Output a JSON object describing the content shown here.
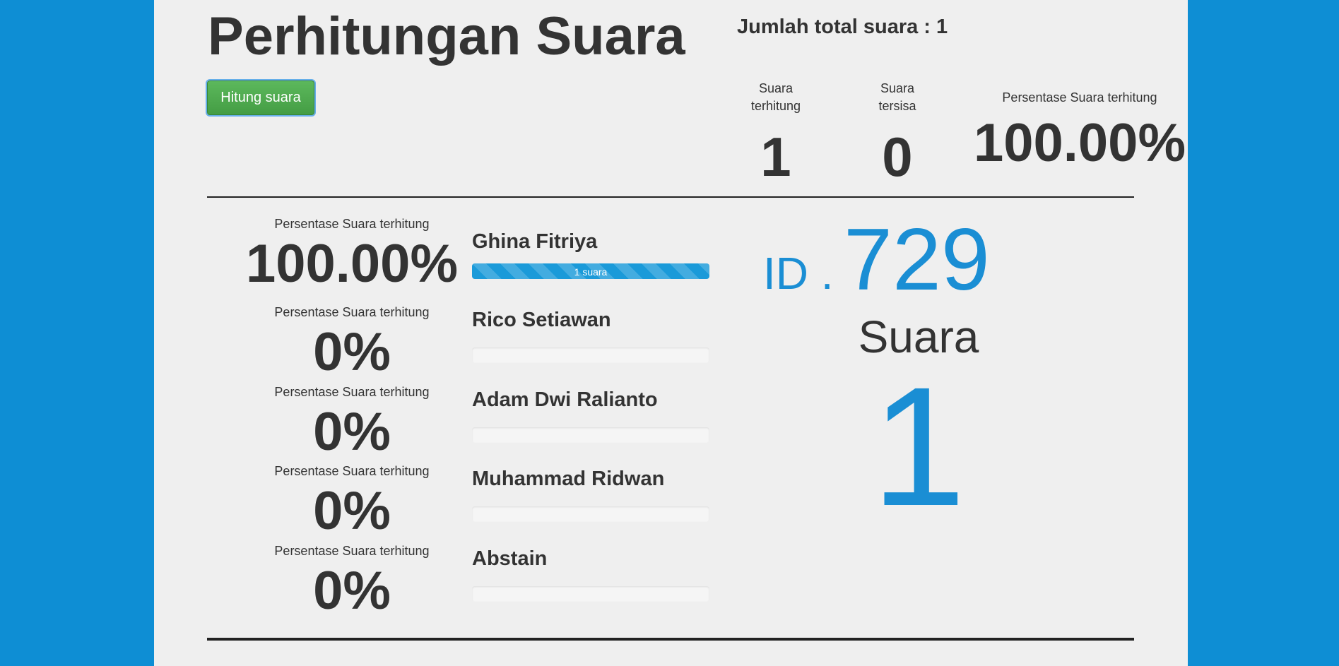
{
  "header": {
    "title": "Perhitungan Suara",
    "count_button_label": "Hitung suara",
    "total_votes_text": "Jumlah total suara : 1"
  },
  "stats": {
    "counted_label_line1": "Suara",
    "counted_label_line2": "terhitung",
    "counted_value": "1",
    "remaining_label_line1": "Suara",
    "remaining_label_line2": "tersisa",
    "remaining_value": "0",
    "percent_label": "Persentase Suara terhitung",
    "percent_value": "100.00%"
  },
  "candidates": [
    {
      "percent_label": "Persentase Suara terhitung",
      "percent": "100.00%",
      "name": "Ghina Fitriya",
      "bar_text": "1 suara",
      "bar_fraction": 1.0
    },
    {
      "percent_label": "Persentase Suara terhitung",
      "percent": "0%",
      "name": "Rico Setiawan",
      "bar_text": "",
      "bar_fraction": 0
    },
    {
      "percent_label": "Persentase Suara terhitung",
      "percent": "0%",
      "name": "Adam Dwi Ralianto",
      "bar_text": "",
      "bar_fraction": 0
    },
    {
      "percent_label": "Persentase Suara terhitung",
      "percent": "0%",
      "name": "Muhammad Ridwan",
      "bar_text": "",
      "bar_fraction": 0
    },
    {
      "percent_label": "Persentase Suara terhitung",
      "percent": "0%",
      "name": "Abstain",
      "bar_text": "",
      "bar_fraction": 0
    }
  ],
  "ballot": {
    "id_prefix": "ID .",
    "id_number": "729",
    "vote_label": "Suara",
    "vote_count": "1"
  },
  "colors": {
    "accent": "#1a8ed4",
    "button": "#5cb85c",
    "background": "#0e8ed4",
    "panel": "#efefef"
  }
}
